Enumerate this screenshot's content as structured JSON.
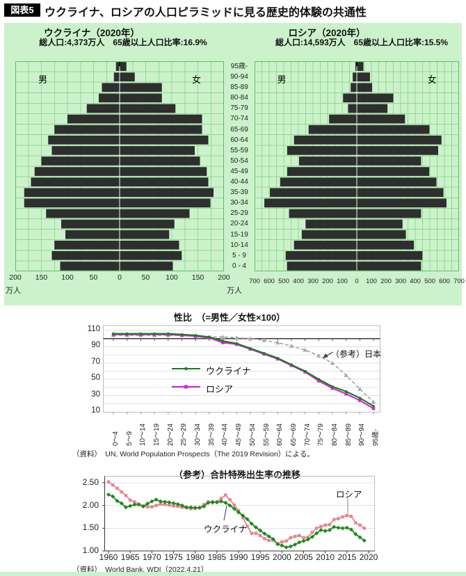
{
  "page": {
    "badge": "図表5",
    "title": "ウクライナ、ロシアの人口ピラミッドに見る歴史的体験の共通性"
  },
  "pyramids": {
    "male_label": "男",
    "female_label": "女",
    "unit_label": "万人",
    "colors": {
      "panel_bg": "#ccf2cc",
      "grid": "#8fd98f",
      "border": "#63bd63",
      "bar": "#2e2e2e",
      "center_line": "#e9fbe9"
    },
    "age_groups": [
      "95歳-",
      "90-94",
      "85-89",
      "80-84",
      "75-79",
      "70-74",
      "65-69",
      "60-64",
      "55-59",
      "50-54",
      "45-49",
      "40-44",
      "35-39",
      "30-34",
      "25-29",
      "20-24",
      "15-19",
      "10-14",
      "5 - 9",
      "0 - 4"
    ],
    "ukraine": {
      "title": "ウクライナ（2020年）",
      "stats": "総人口:4,373万人　65歳以上人口比率:16.9%",
      "axis_max": 200,
      "grid_step": 25,
      "ticks": [
        "200",
        "150",
        "100",
        "50",
        "0",
        "50",
        "100",
        "150",
        "200"
      ],
      "male": [
        7,
        11,
        34,
        40,
        63,
        100,
        125,
        137,
        130,
        150,
        163,
        170,
        183,
        183,
        141,
        112,
        104,
        125,
        130,
        114
      ],
      "female": [
        13,
        29,
        81,
        81,
        107,
        158,
        158,
        170,
        144,
        154,
        167,
        170,
        180,
        174,
        134,
        105,
        95,
        114,
        119,
        102
      ]
    },
    "russia": {
      "title": "ロシア（2020年）",
      "stats": "総人口:14,593万人　65歳以上人口比率:15.5%",
      "axis_max": 700,
      "grid_step": 50,
      "ticks": [
        "700",
        "600",
        "500",
        "400",
        "300",
        "200",
        "100",
        "0",
        "100",
        "200",
        "300",
        "400",
        "500",
        "600",
        "700"
      ],
      "male": [
        10,
        28,
        42,
        94,
        60,
        190,
        330,
        430,
        477,
        395,
        477,
        525,
        595,
        633,
        464,
        350,
        377,
        430,
        487,
        478
      ],
      "female": [
        45,
        90,
        105,
        250,
        210,
        330,
        497,
        580,
        557,
        440,
        496,
        545,
        593,
        614,
        440,
        313,
        336,
        391,
        449,
        440
      ]
    }
  },
  "sex_ratio": {
    "title": "性比　（=男性／女性×100）",
    "y_ticks": [
      110,
      90,
      70,
      50,
      30,
      10
    ],
    "categories": [
      "0～4",
      "5～9",
      "10～14",
      "15～19",
      "20～24",
      "25～29",
      "30～34",
      "35～39",
      "40～44",
      "45～49",
      "50～54",
      "55～59",
      "60～64",
      "65～69",
      "70～74",
      "75～79",
      "80～84",
      "85～89",
      "90～94",
      "95歳-"
    ],
    "annotation": "（参考）日本",
    "source": "（資料）　UN, World Population Prospects（The 2019 Revision）による。",
    "series": [
      {
        "name": "ウクライナ",
        "color": "#1b7c1b",
        "marker": "circle",
        "dashed": false,
        "values": [
          106,
          106,
          106,
          106,
          106,
          105,
          104,
          102,
          97,
          94,
          88,
          82,
          76,
          68,
          60,
          50,
          41,
          35,
          27,
          17
        ]
      },
      {
        "name": "ロシア",
        "color": "#cf2bcf",
        "marker": "square",
        "dashed": false,
        "values": [
          105,
          105,
          105,
          105,
          105,
          104,
          103,
          101,
          95,
          93,
          87,
          81,
          75,
          67,
          59,
          48,
          39,
          32,
          24,
          14
        ]
      },
      {
        "name": "日本",
        "color": "#9c9c9c",
        "marker": "triangle",
        "dashed": true,
        "values": [
          104,
          104,
          104,
          104,
          104,
          104,
          103,
          102,
          102,
          101,
          100,
          98,
          95,
          91,
          86,
          79,
          70,
          55,
          38,
          22
        ]
      }
    ]
  },
  "fertility": {
    "title": "（参考）合計特殊出生率の推移",
    "y_ticks": [
      "2.50",
      "2.00",
      "1.50",
      "1.00"
    ],
    "x_ticks": [
      "1960",
      "1965",
      "1970",
      "1975",
      "1980",
      "1985",
      "1990",
      "1995",
      "2000",
      "2005",
      "2010",
      "2015",
      "2020"
    ],
    "start_year": 1960,
    "source": "（資料）　World Bank, WDI（2022.4.21）",
    "series": [
      {
        "name": "ロシア",
        "color": "#e8838d",
        "marker": "square",
        "values": [
          2.52,
          2.45,
          2.38,
          2.3,
          2.22,
          2.12,
          2.08,
          2.03,
          1.99,
          1.97,
          1.97,
          2.0,
          2.03,
          2.02,
          2.01,
          1.99,
          1.98,
          1.96,
          1.95,
          1.93,
          1.94,
          1.95,
          2.02,
          2.08,
          2.06,
          2.08,
          2.16,
          2.23,
          2.13,
          2.01,
          1.89,
          1.73,
          1.55,
          1.39,
          1.39,
          1.34,
          1.27,
          1.23,
          1.24,
          1.16,
          1.2,
          1.22,
          1.29,
          1.32,
          1.34,
          1.29,
          1.3,
          1.41,
          1.5,
          1.54,
          1.57,
          1.58,
          1.69,
          1.71,
          1.75,
          1.78,
          1.76,
          1.62,
          1.57,
          1.5
        ]
      },
      {
        "name": "ウクライナ",
        "color": "#1c8a1c",
        "marker": "diamond",
        "values": [
          2.24,
          2.2,
          2.1,
          2.05,
          1.96,
          1.99,
          2.02,
          2.02,
          1.98,
          2.04,
          2.09,
          2.13,
          2.09,
          2.08,
          2.07,
          2.05,
          2.03,
          2.0,
          1.96,
          1.96,
          1.95,
          1.95,
          1.98,
          2.06,
          2.08,
          2.07,
          2.09,
          2.06,
          2.0,
          1.93,
          1.85,
          1.78,
          1.7,
          1.6,
          1.52,
          1.45,
          1.38,
          1.32,
          1.26,
          1.15,
          1.12,
          1.08,
          1.1,
          1.14,
          1.19,
          1.22,
          1.25,
          1.31,
          1.39,
          1.46,
          1.44,
          1.46,
          1.53,
          1.51,
          1.5,
          1.51,
          1.47,
          1.37,
          1.3,
          1.23
        ]
      }
    ]
  }
}
